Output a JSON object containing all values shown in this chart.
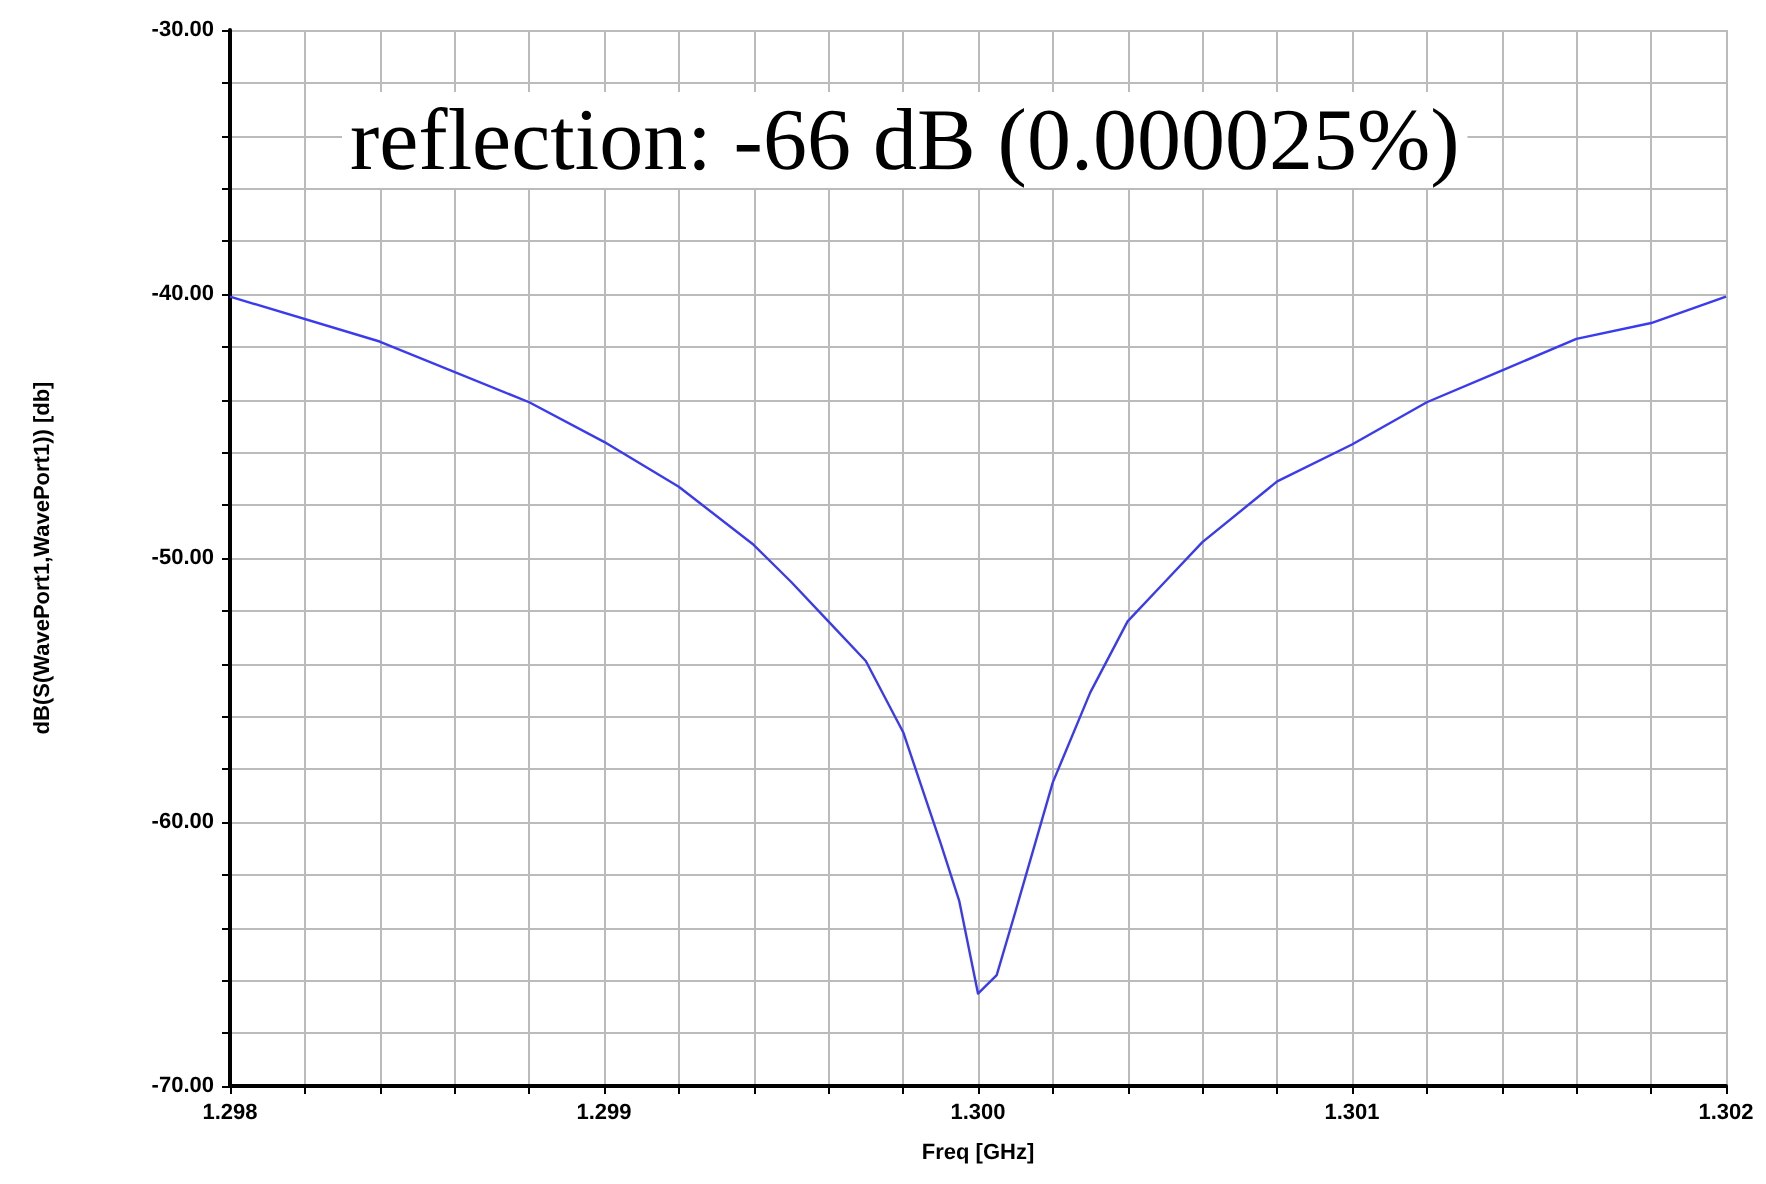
{
  "chart_data": {
    "type": "line",
    "xlabel": "Freq [GHz]",
    "ylabel": "dB(S(WavePort1,WavePort1)) [db]",
    "annotations": [
      "reflection: -66 dB (0.000025%)"
    ],
    "x": [
      1.298,
      1.2984,
      1.2988,
      1.299,
      1.2992,
      1.2994,
      1.2995,
      1.2996,
      1.2997,
      1.2998,
      1.2999,
      1.29995,
      1.3,
      1.30005,
      1.3001,
      1.3002,
      1.3003,
      1.3004,
      1.3005,
      1.3006,
      1.3008,
      1.301,
      1.3012,
      1.3014,
      1.3016,
      1.3018,
      1.302
    ],
    "series": [
      {
        "color": "#3a3af0",
        "values": [
          -40.1,
          -41.8,
          -44.1,
          -45.6,
          -47.3,
          -49.5,
          -50.9,
          -52.4,
          -53.9,
          -56.6,
          -60.8,
          -63,
          -66.5,
          -65.8,
          -63.4,
          -58.5,
          -55.1,
          -52.4,
          -50.9,
          -49.4,
          -47.1,
          -45.7,
          -44.1,
          -42.9,
          -41.7,
          -41.1,
          -40.1
        ]
      }
    ],
    "xlim": [
      1.298,
      1.302
    ],
    "xticks": [
      {
        "value": 1.298,
        "label": "1.298"
      },
      {
        "value": 1.2982,
        "label": null
      },
      {
        "value": 1.2984,
        "label": null
      },
      {
        "value": 1.2986,
        "label": null
      },
      {
        "value": 1.2988,
        "label": null
      },
      {
        "value": 1.299,
        "label": "1.299"
      },
      {
        "value": 1.2992,
        "label": null
      },
      {
        "value": 1.2994,
        "label": null
      },
      {
        "value": 1.2996,
        "label": null
      },
      {
        "value": 1.2998,
        "label": null
      },
      {
        "value": 1.3,
        "label": "1.300"
      },
      {
        "value": 1.3002,
        "label": null
      },
      {
        "value": 1.3004,
        "label": null
      },
      {
        "value": 1.3006,
        "label": null
      },
      {
        "value": 1.3008,
        "label": null
      },
      {
        "value": 1.301,
        "label": "1.301"
      },
      {
        "value": 1.3012,
        "label": null
      },
      {
        "value": 1.3014,
        "label": null
      },
      {
        "value": 1.3016,
        "label": null
      },
      {
        "value": 1.3018,
        "label": null
      },
      {
        "value": 1.302,
        "label": "1.302"
      }
    ],
    "ylim": [
      -70,
      -30
    ],
    "yticks": [
      {
        "value": -70,
        "label": "-70.00"
      },
      {
        "value": -68,
        "label": null
      },
      {
        "value": -66,
        "label": null
      },
      {
        "value": -64,
        "label": null
      },
      {
        "value": -62,
        "label": null
      },
      {
        "value": -60,
        "label": "-60.00"
      },
      {
        "value": -58,
        "label": null
      },
      {
        "value": -56,
        "label": null
      },
      {
        "value": -54,
        "label": null
      },
      {
        "value": -52,
        "label": null
      },
      {
        "value": -50,
        "label": "-50.00"
      },
      {
        "value": -48,
        "label": null
      },
      {
        "value": -46,
        "label": null
      },
      {
        "value": -44,
        "label": null
      },
      {
        "value": -42,
        "label": null
      },
      {
        "value": -40,
        "label": "-40.00"
      },
      {
        "value": -38,
        "label": null
      },
      {
        "value": -36,
        "label": null
      },
      {
        "value": -34,
        "label": null
      },
      {
        "value": -32,
        "label": null
      },
      {
        "value": -30,
        "label": "-30.00"
      }
    ],
    "grid": true,
    "marker": "none",
    "line_style": "solid"
  }
}
